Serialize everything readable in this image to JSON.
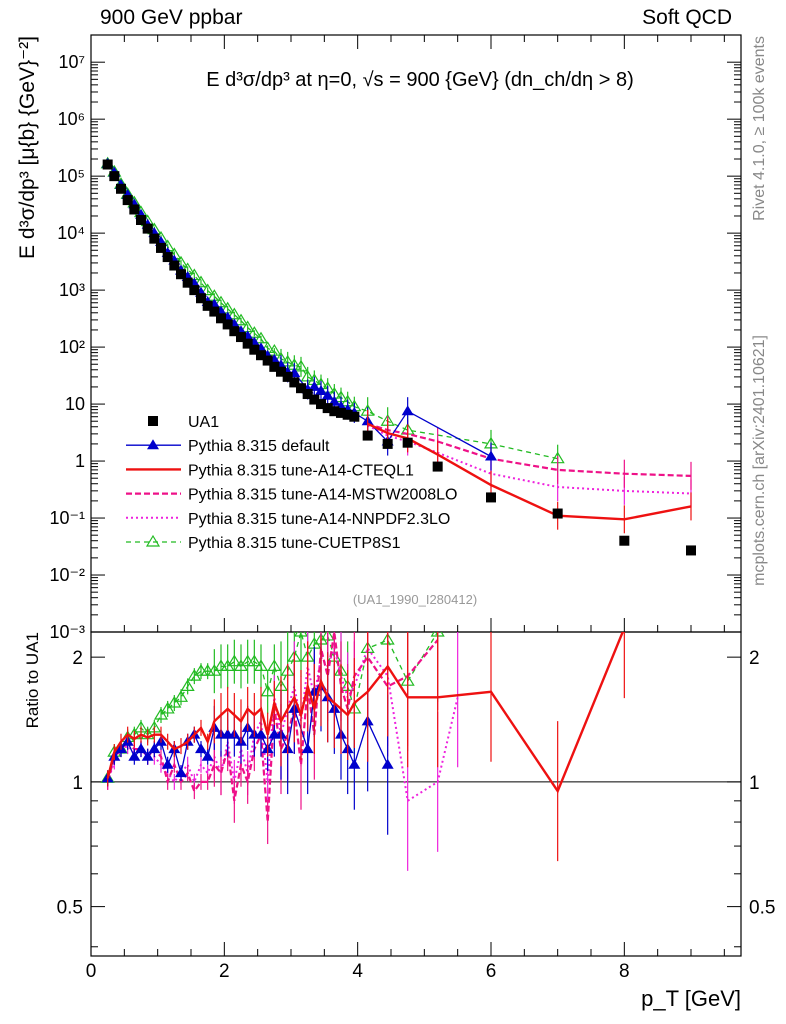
{
  "header": {
    "left": "900 GeV ppbar",
    "right": "Soft QCD"
  },
  "side_text": {
    "rivet": "Rivet 4.1.0, ≥ 100k events",
    "mcplots": "mcplots.cern.ch [arXiv:2401.10621]"
  },
  "colors": {
    "data": "#000000",
    "default": "#0000cc",
    "cteql1": "#ee1111",
    "mstw": "#ee1188",
    "nnpdf": "#ee22dd",
    "cuetp8s1": "#22bb22"
  },
  "chart_data": {
    "type": "scatter",
    "title": "E  d³σ/dp³ at η=0, √s = 900 {GeV} (dn_ch/dη > 8)",
    "xlabel": "p_T [GeV]",
    "ylabel": "E d³σ/dp³ [μ{b} {GeV}⁻²]",
    "ratio_ylabel": "Ratio to UA1",
    "watermark": "(UA1_1990_I280412)",
    "xlim": [
      0,
      9.75
    ],
    "ylim": [
      0.001,
      30000000
    ],
    "yscale": "log",
    "ratio_ylim": [
      0.38,
      2.3
    ],
    "ratio_yscale": "log",
    "x_ticks": [
      "0",
      "2",
      "4",
      "6",
      "8"
    ],
    "y_ticks": [
      "10⁻³",
      "10⁻²",
      "10⁻¹",
      "1",
      "10",
      "10²",
      "10³",
      "10⁴",
      "10⁵",
      "10⁶",
      "10⁷"
    ],
    "ratio_ticks": [
      "0.5",
      "1",
      "2"
    ],
    "x": [
      0.25,
      0.35,
      0.45,
      0.55,
      0.65,
      0.75,
      0.85,
      0.95,
      1.05,
      1.15,
      1.25,
      1.35,
      1.45,
      1.55,
      1.65,
      1.75,
      1.85,
      1.95,
      2.05,
      2.15,
      2.25,
      2.35,
      2.45,
      2.55,
      2.65,
      2.75,
      2.85,
      2.95,
      3.05,
      3.15,
      3.25,
      3.35,
      3.45,
      3.55,
      3.65,
      3.75,
      3.85,
      3.95,
      4.15,
      4.45,
      4.75,
      5.2,
      6.0,
      7.0,
      8.0,
      9.0
    ],
    "series": [
      {
        "name": "UA1",
        "kind": "data",
        "values": [
          160000,
          100000,
          60000,
          38000,
          26000,
          17000,
          12000,
          8000,
          5500,
          3800,
          2700,
          1900,
          1350,
          1000,
          720,
          530,
          420,
          320,
          250,
          190,
          150,
          115,
          90,
          72,
          58,
          45,
          37,
          30,
          24,
          19,
          15,
          12,
          10,
          8.5,
          7.5,
          7,
          6.5,
          6,
          2.8,
          2,
          2.1,
          0.8,
          0.23,
          0.12,
          0.04,
          0.027
        ]
      },
      {
        "name": "Pythia 8.315 default",
        "kind": "default",
        "line_x": [
          0.25,
          0.35,
          0.45,
          0.55,
          0.65,
          0.75,
          0.85,
          0.95,
          1.05,
          1.15,
          1.25,
          1.35,
          1.45,
          1.55,
          1.65,
          1.75,
          1.85,
          1.95,
          2.05,
          2.15,
          2.25,
          2.35,
          2.45,
          2.55,
          2.65,
          2.75,
          2.85,
          2.95,
          3.05,
          3.25,
          3.35,
          3.45,
          3.55,
          3.65,
          3.75,
          3.85,
          3.95,
          4.15,
          4.45,
          4.75,
          6.0
        ],
        "line_y": [
          165000,
          115000,
          70000,
          47000,
          32000,
          21000,
          14000,
          10000,
          7000,
          4500,
          3300,
          2200,
          1700,
          1300,
          900,
          620,
          560,
          420,
          330,
          250,
          190,
          155,
          120,
          95,
          70,
          60,
          48,
          36,
          35,
          18,
          20,
          17,
          14,
          11,
          9,
          8,
          7,
          5,
          2.2,
          7.5,
          1.2
        ],
        "ratio_x": [
          0.25,
          0.35,
          0.45,
          0.55,
          0.65,
          0.75,
          0.85,
          0.95,
          1.05,
          1.15,
          1.25,
          1.35,
          1.45,
          1.55,
          1.65,
          1.75,
          1.85,
          1.95,
          2.05,
          2.15,
          2.25,
          2.35,
          2.45,
          2.55,
          2.65,
          2.75,
          2.85,
          2.95,
          3.05,
          3.25,
          3.35,
          3.45,
          3.55,
          3.65,
          3.75,
          3.85,
          3.95,
          4.15,
          4.45
        ],
        "ratio_y": [
          1.02,
          1.15,
          1.2,
          1.25,
          1.15,
          1.2,
          1.15,
          1.2,
          1.25,
          1.1,
          1.2,
          1.05,
          1.25,
          1.3,
          1.2,
          1.15,
          1.35,
          1.3,
          1.3,
          1.3,
          1.25,
          1.35,
          1.3,
          1.3,
          1.2,
          1.3,
          1.3,
          1.2,
          1.5,
          1.2,
          1.65,
          1.7,
          1.6,
          1.5,
          1.3,
          1.2,
          1.1,
          1.4,
          1.1
        ]
      },
      {
        "name": "Pythia 8.315 tune-A14-CTEQL1",
        "kind": "cteql1",
        "line_x": [
          4.15,
          4.45,
          4.75,
          5.2,
          6.0,
          7.0,
          8.0,
          9.0
        ],
        "line_y": [
          4.5,
          3.1,
          2.5,
          1.3,
          0.38,
          0.11,
          0.095,
          0.16
        ],
        "ratio_x": [
          0.25,
          0.35,
          0.45,
          0.55,
          0.65,
          0.75,
          0.85,
          0.95,
          1.05,
          1.15,
          1.25,
          1.35,
          1.45,
          1.55,
          1.65,
          1.75,
          1.85,
          1.95,
          2.05,
          2.15,
          2.25,
          2.35,
          2.45,
          2.55,
          2.65,
          2.75,
          2.85,
          2.95,
          3.05,
          3.15,
          3.25,
          3.35,
          3.45,
          3.55,
          3.65,
          3.75,
          3.85,
          3.95,
          4.15,
          4.45,
          4.75,
          5.2,
          6.0,
          7.0,
          8.0
        ],
        "ratio_y": [
          1.02,
          1.18,
          1.25,
          1.3,
          1.27,
          1.3,
          1.28,
          1.3,
          1.3,
          1.25,
          1.2,
          1.22,
          1.25,
          1.3,
          1.35,
          1.25,
          1.4,
          1.45,
          1.5,
          1.45,
          1.4,
          1.5,
          1.45,
          1.5,
          1.3,
          1.55,
          1.4,
          1.5,
          1.6,
          1.45,
          1.7,
          1.5,
          1.75,
          1.6,
          1.55,
          1.5,
          1.45,
          1.55,
          1.65,
          1.9,
          1.6,
          1.6,
          1.65,
          0.95,
          2.35
        ]
      },
      {
        "name": "Pythia 8.315 tune-A14-MSTW2008LO",
        "kind": "mstw",
        "line_x": [
          4.15,
          4.45,
          4.75,
          5.2,
          6.0,
          7.0,
          8.0,
          9.0
        ],
        "line_y": [
          4.5,
          3.5,
          3.0,
          2.2,
          1.1,
          0.7,
          0.6,
          0.55
        ],
        "ratio_x": [
          0.25,
          0.35,
          0.45,
          0.55,
          0.65,
          0.75,
          0.85,
          0.95,
          1.05,
          1.15,
          1.25,
          1.35,
          1.45,
          1.55,
          1.65,
          1.75,
          1.85,
          1.95,
          2.05,
          2.15,
          2.25,
          2.35,
          2.45,
          2.55,
          2.65,
          2.75,
          2.85,
          2.95,
          3.05,
          3.15,
          3.25,
          3.35,
          3.45,
          3.55,
          3.65,
          3.75,
          3.85,
          3.95,
          4.15,
          4.45,
          4.75,
          5.2
        ],
        "ratio_y": [
          1.0,
          1.15,
          1.2,
          1.25,
          1.2,
          1.2,
          1.15,
          1.2,
          1.15,
          1.0,
          1.1,
          1.0,
          1.05,
          0.95,
          1.0,
          1.0,
          1.1,
          1.05,
          1.2,
          0.9,
          1.1,
          1.0,
          1.2,
          1.3,
          0.8,
          1.5,
          1.2,
          1.3,
          1.5,
          1.1,
          1.7,
          1.3,
          2.1,
          1.8,
          2.3,
          1.7,
          1.5,
          1.8,
          2.0,
          1.7,
          1.8,
          2.2
        ]
      },
      {
        "name": "Pythia 8.315 tune-A14-NNPDF2.3LO",
        "kind": "nnpdf",
        "line_x": [
          4.15,
          4.45,
          4.75,
          5.2,
          6.0,
          7.0,
          8.0,
          9.0
        ],
        "line_y": [
          4.2,
          2.8,
          2.2,
          1.4,
          0.6,
          0.35,
          0.3,
          0.27
        ],
        "ratio_x": [
          0.25,
          0.35,
          0.45,
          0.55,
          0.65,
          0.75,
          0.85,
          0.95,
          1.05,
          1.15,
          1.25,
          1.35,
          1.45,
          1.55,
          1.65,
          1.75,
          1.85,
          1.95,
          2.05,
          2.15,
          2.25,
          2.35,
          2.45,
          2.55,
          2.65,
          2.75,
          2.85,
          2.95,
          3.05,
          3.15,
          3.25,
          3.35,
          3.45,
          3.55,
          3.65,
          3.75,
          3.85,
          3.95,
          4.15,
          4.45,
          4.75,
          5.2,
          5.5
        ],
        "ratio_y": [
          1.0,
          1.12,
          1.2,
          1.22,
          1.18,
          1.2,
          1.15,
          1.15,
          1.1,
          1.05,
          1.0,
          1.05,
          1.1,
          1.0,
          1.1,
          1.05,
          1.15,
          1.05,
          1.25,
          1.0,
          1.2,
          1.05,
          1.3,
          1.4,
          1.0,
          1.6,
          1.3,
          1.5,
          1.7,
          1.4,
          1.9,
          1.6,
          2.0,
          1.9,
          2.1,
          1.8,
          1.6,
          1.7,
          2.1,
          1.8,
          0.9,
          1.0,
          1.6
        ]
      },
      {
        "name": "Pythia 8.315 tune-CUETP8S1",
        "kind": "cuetp8s1",
        "line_x": [
          0.25,
          0.35,
          0.45,
          0.55,
          0.65,
          0.75,
          0.85,
          0.95,
          1.05,
          1.15,
          1.25,
          1.35,
          1.45,
          1.55,
          1.65,
          1.75,
          1.85,
          1.95,
          2.05,
          2.15,
          2.25,
          2.35,
          2.45,
          2.55,
          2.65,
          2.75,
          2.85,
          2.95,
          3.05,
          3.15,
          3.25,
          3.35,
          3.45,
          3.55,
          3.65,
          3.75,
          3.85,
          3.95,
          4.15,
          4.45,
          4.75,
          6.0,
          7.0
        ],
        "line_y": [
          165000,
          118000,
          72000,
          48000,
          34000,
          23000,
          16000,
          11500,
          8200,
          5800,
          4200,
          3000,
          2300,
          1800,
          1350,
          980,
          780,
          600,
          470,
          370,
          290,
          220,
          175,
          140,
          95,
          85,
          62,
          55,
          48,
          45,
          30,
          26,
          22,
          19,
          15,
          13,
          11,
          9,
          7.5,
          5,
          3.5,
          2.0,
          1.1
        ],
        "ratio_x": [
          0.25,
          0.35,
          0.45,
          0.55,
          0.65,
          0.75,
          0.85,
          0.95,
          1.05,
          1.15,
          1.25,
          1.35,
          1.45,
          1.55,
          1.65,
          1.75,
          1.85,
          1.95,
          2.05,
          2.15,
          2.25,
          2.35,
          2.45,
          2.55,
          2.65,
          2.75,
          2.85,
          2.95,
          3.05,
          3.15,
          3.25,
          3.35,
          3.45,
          3.55,
          3.65,
          3.75,
          3.85,
          3.95,
          4.15,
          4.45,
          4.75,
          5.2
        ],
        "ratio_y": [
          1.02,
          1.18,
          1.2,
          1.28,
          1.3,
          1.35,
          1.3,
          1.35,
          1.45,
          1.5,
          1.55,
          1.6,
          1.7,
          1.8,
          1.85,
          1.85,
          1.85,
          1.9,
          1.9,
          1.95,
          1.9,
          1.95,
          1.95,
          1.9,
          1.65,
          1.9,
          1.7,
          1.85,
          2.0,
          2.3,
          2.0,
          2.15,
          2.2,
          2.25,
          2.0,
          1.85,
          1.7,
          1.5,
          2.1,
          2.2,
          1.75,
          2.3
        ]
      }
    ]
  }
}
